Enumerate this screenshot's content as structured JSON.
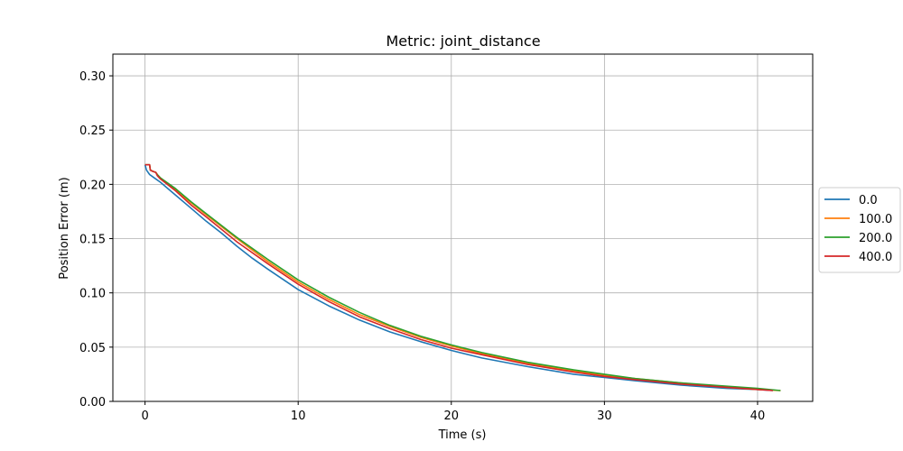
{
  "chart_data": {
    "type": "line",
    "title": "Metric: joint_distance",
    "xlabel": "Time (s)",
    "ylabel": "Position Error (m)",
    "xlim": [
      -2.1,
      43.6
    ],
    "ylim": [
      0.0,
      0.32
    ],
    "xticks": [
      0,
      10,
      20,
      30,
      40
    ],
    "xtick_labels": [
      "0",
      "10",
      "20",
      "30",
      "40"
    ],
    "yticks": [
      0.0,
      0.05,
      0.1,
      0.15,
      0.2,
      0.25,
      0.3
    ],
    "ytick_labels": [
      "0.00",
      "0.05",
      "0.10",
      "0.15",
      "0.20",
      "0.25",
      "0.30"
    ],
    "grid": true,
    "legend": "outside-right",
    "series": [
      {
        "name": "0.0",
        "color": "#1f77b4",
        "x": [
          0,
          0.1,
          0.3,
          0.6,
          1,
          2,
          3,
          4,
          5,
          6,
          7,
          8,
          10,
          12,
          14,
          16,
          18,
          20,
          22,
          25,
          28,
          30,
          32,
          35,
          38,
          40,
          41
        ],
        "y": [
          0.218,
          0.213,
          0.209,
          0.206,
          0.202,
          0.19,
          0.178,
          0.166,
          0.155,
          0.143,
          0.132,
          0.122,
          0.103,
          0.088,
          0.075,
          0.064,
          0.055,
          0.047,
          0.04,
          0.032,
          0.025,
          0.022,
          0.019,
          0.015,
          0.012,
          0.011,
          0.01
        ]
      },
      {
        "name": "100.0",
        "color": "#ff7f0e",
        "x": [
          0,
          0.3,
          0.35,
          0.5,
          0.7,
          0.8,
          1,
          2,
          3,
          4,
          6,
          8,
          10,
          12,
          14,
          16,
          18,
          20,
          22,
          25,
          28,
          30,
          32,
          35,
          38,
          40,
          41.5
        ],
        "y": [
          0.218,
          0.218,
          0.213,
          0.212,
          0.211,
          0.209,
          0.206,
          0.195,
          0.183,
          0.172,
          0.15,
          0.129,
          0.11,
          0.094,
          0.08,
          0.069,
          0.059,
          0.051,
          0.044,
          0.035,
          0.028,
          0.024,
          0.021,
          0.017,
          0.013,
          0.011,
          0.01
        ]
      },
      {
        "name": "200.0",
        "color": "#2ca02c",
        "x": [
          0,
          0.3,
          0.35,
          0.5,
          0.7,
          0.8,
          1,
          2,
          3,
          4,
          6,
          8,
          10,
          12,
          14,
          16,
          18,
          20,
          22,
          25,
          28,
          30,
          32,
          35,
          38,
          40,
          41.5
        ],
        "y": [
          0.218,
          0.218,
          0.213,
          0.212,
          0.211,
          0.209,
          0.206,
          0.196,
          0.184,
          0.173,
          0.151,
          0.131,
          0.112,
          0.096,
          0.082,
          0.07,
          0.06,
          0.052,
          0.045,
          0.036,
          0.029,
          0.025,
          0.021,
          0.017,
          0.014,
          0.012,
          0.01
        ]
      },
      {
        "name": "400.0",
        "color": "#d62728",
        "x": [
          0,
          0.3,
          0.35,
          0.5,
          0.7,
          0.8,
          1,
          2,
          3,
          4,
          6,
          8,
          10,
          12,
          14,
          16,
          18,
          20,
          22,
          25,
          28,
          30,
          32,
          35,
          38,
          40,
          41
        ],
        "y": [
          0.218,
          0.218,
          0.213,
          0.212,
          0.211,
          0.208,
          0.205,
          0.194,
          0.181,
          0.17,
          0.147,
          0.127,
          0.108,
          0.092,
          0.078,
          0.067,
          0.057,
          0.049,
          0.043,
          0.034,
          0.027,
          0.023,
          0.02,
          0.016,
          0.013,
          0.011,
          0.01
        ]
      }
    ]
  }
}
